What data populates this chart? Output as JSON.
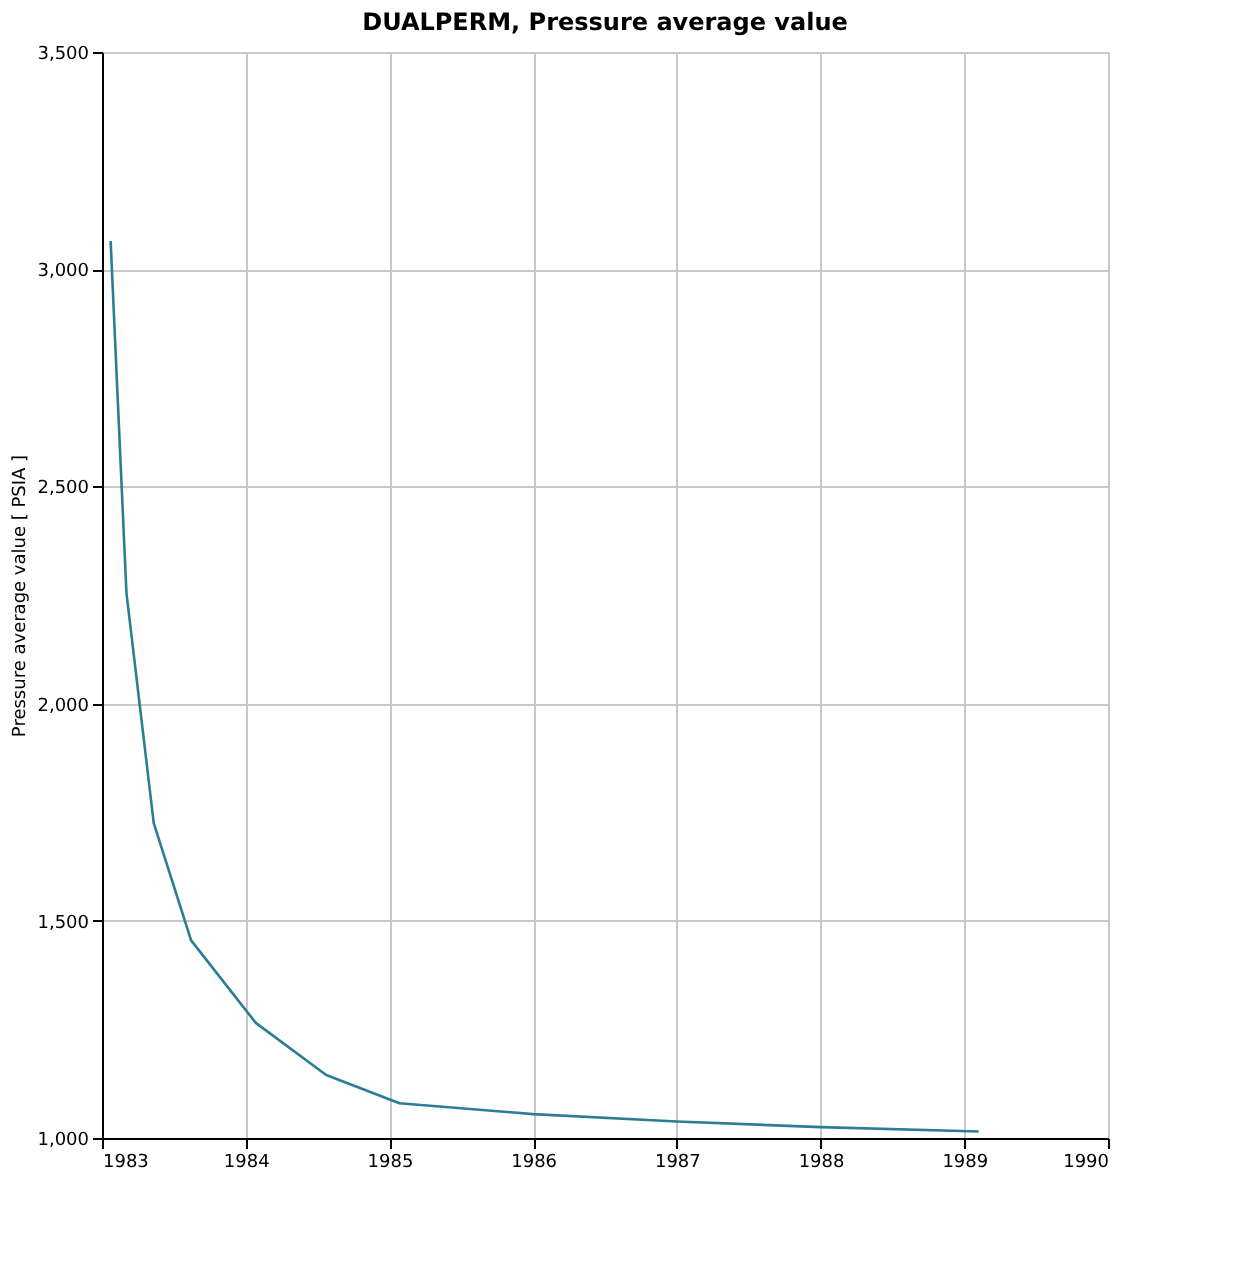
{
  "chart_data": {
    "type": "line",
    "title": "DUALPERM, Pressure average value",
    "ylabel": "Pressure average value [ PSIA ]",
    "x": [
      1983.06,
      1983.17,
      1983.36,
      1983.62,
      1984.07,
      1984.56,
      1985.07,
      1986.0,
      1987.0,
      1988.0,
      1989.1
    ],
    "series": [
      {
        "color": "#2b7d96",
        "values": [
          3065,
          2255,
          1725,
          1455,
          1265,
          1145,
          1080,
          1055,
          1038,
          1025,
          1015
        ]
      }
    ],
    "xlim": [
      1983,
      1990
    ],
    "xticks": [
      1983,
      1984,
      1985,
      1986,
      1987,
      1988,
      1989,
      1990
    ],
    "ylim": [
      1000,
      3500
    ],
    "yticks": [
      {
        "value": 1000,
        "label": "1,000"
      },
      {
        "value": 1500,
        "label": "1,500"
      },
      {
        "value": 2000,
        "label": "2,000"
      },
      {
        "value": 2500,
        "label": "2,500"
      },
      {
        "value": 3000,
        "label": "3,000"
      },
      {
        "value": 3500,
        "label": "3,500"
      }
    ],
    "grid": true,
    "marker": "none",
    "line_style": "solid",
    "legend": false
  }
}
